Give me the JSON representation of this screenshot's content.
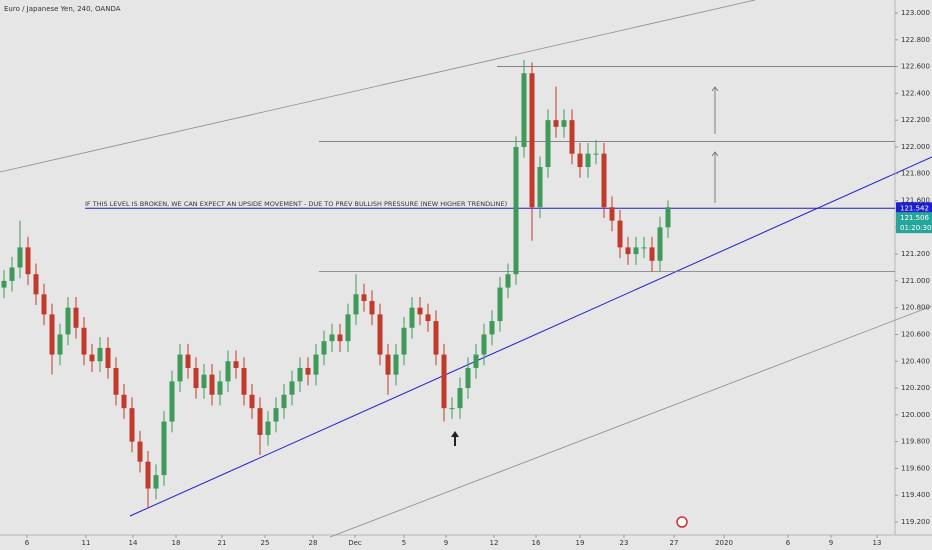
{
  "chart_data": {
    "type": "candlestick",
    "title": "Euro / Japanese Yen, 240, OANDA",
    "open": [
      120.95,
      121.0,
      121.1,
      121.25,
      121.05,
      120.9,
      120.75,
      120.45,
      120.6,
      120.8,
      120.65,
      120.45,
      120.4,
      120.5,
      120.35,
      120.15,
      120.05,
      119.8,
      119.65,
      119.45,
      119.55,
      119.95,
      120.25,
      120.45,
      120.35,
      120.2,
      120.3,
      120.15,
      120.25,
      120.4,
      120.35,
      120.15,
      120.05,
      119.85,
      119.95,
      120.05,
      120.15,
      120.25,
      120.35,
      120.3,
      120.45,
      120.55,
      120.6,
      120.55,
      120.75,
      120.9,
      120.85,
      120.75,
      120.45,
      120.3,
      120.45,
      120.65,
      120.8,
      120.75,
      120.7,
      120.45,
      120.05,
      120.05,
      120.2,
      120.35,
      120.45,
      120.6,
      120.7,
      120.95,
      121.05,
      122.0,
      122.55,
      121.55,
      121.85,
      122.2,
      122.15,
      122.2,
      121.95,
      121.85,
      121.95,
      121.95,
      121.55,
      121.45,
      121.25,
      121.2,
      121.25,
      121.25,
      121.15,
      121.4
    ],
    "high": [
      121.08,
      121.18,
      121.45,
      121.33,
      121.13,
      120.98,
      120.83,
      120.68,
      120.88,
      120.88,
      120.73,
      120.53,
      120.58,
      120.58,
      120.43,
      120.23,
      120.13,
      119.88,
      119.73,
      119.63,
      120.03,
      120.33,
      120.53,
      120.53,
      120.43,
      120.38,
      120.38,
      120.33,
      120.48,
      120.48,
      120.43,
      120.23,
      120.13,
      120.03,
      120.13,
      120.23,
      120.33,
      120.43,
      120.43,
      120.53,
      120.63,
      120.68,
      120.68,
      120.83,
      121.05,
      120.98,
      120.93,
      120.83,
      120.53,
      120.53,
      120.73,
      120.88,
      120.88,
      120.83,
      120.78,
      120.53,
      120.13,
      120.28,
      120.43,
      120.53,
      120.68,
      120.78,
      121.03,
      121.13,
      122.08,
      122.65,
      122.63,
      121.93,
      122.28,
      122.45,
      122.28,
      122.28,
      122.03,
      122.03,
      122.05,
      122.03,
      121.63,
      121.53,
      121.33,
      121.33,
      121.33,
      121.33,
      121.48,
      121.6
    ],
    "low": [
      120.87,
      120.92,
      121.02,
      120.97,
      120.82,
      120.67,
      120.3,
      120.37,
      120.52,
      120.57,
      120.37,
      120.32,
      120.32,
      120.27,
      120.07,
      119.97,
      119.72,
      119.57,
      119.3,
      119.37,
      119.47,
      119.87,
      120.17,
      120.27,
      120.12,
      120.12,
      120.07,
      120.07,
      120.17,
      120.27,
      120.07,
      119.97,
      119.7,
      119.77,
      119.87,
      119.97,
      120.07,
      120.17,
      120.22,
      120.22,
      120.37,
      120.47,
      120.47,
      120.47,
      120.67,
      120.77,
      120.67,
      120.37,
      120.15,
      120.22,
      120.37,
      120.57,
      120.67,
      120.62,
      120.37,
      119.95,
      119.97,
      119.97,
      120.12,
      120.27,
      120.37,
      120.52,
      120.62,
      120.87,
      120.97,
      121.92,
      121.3,
      121.47,
      121.77,
      122.07,
      122.07,
      121.87,
      121.77,
      121.77,
      121.87,
      121.47,
      121.37,
      121.17,
      121.12,
      121.12,
      121.17,
      121.07,
      121.07,
      121.32
    ],
    "close": [
      121.0,
      121.1,
      121.25,
      121.05,
      120.9,
      120.75,
      120.45,
      120.6,
      120.8,
      120.65,
      120.45,
      120.4,
      120.5,
      120.35,
      120.15,
      120.05,
      119.8,
      119.65,
      119.45,
      119.55,
      119.95,
      120.25,
      120.45,
      120.35,
      120.2,
      120.3,
      120.15,
      120.25,
      120.4,
      120.35,
      120.15,
      120.05,
      119.85,
      119.95,
      120.05,
      120.15,
      120.25,
      120.35,
      120.3,
      120.45,
      120.55,
      120.6,
      120.55,
      120.75,
      120.9,
      120.85,
      120.75,
      120.45,
      120.3,
      120.45,
      120.65,
      120.8,
      120.75,
      120.7,
      120.45,
      120.05,
      120.05,
      120.2,
      120.35,
      120.45,
      120.6,
      120.7,
      120.95,
      121.05,
      122.0,
      122.55,
      121.55,
      121.85,
      122.2,
      122.15,
      122.2,
      121.95,
      121.85,
      121.95,
      121.95,
      121.55,
      121.45,
      121.25,
      121.2,
      121.25,
      121.25,
      121.15,
      121.4,
      121.55
    ],
    "up_color": "#3f9a5a",
    "down_color": "#c0392b",
    "xlim": [
      -0.5,
      111.375
    ],
    "xticks": [
      {
        "value": 2.875,
        "label": "6"
      },
      {
        "value": 10.25,
        "label": "11"
      },
      {
        "value": 16.125,
        "label": "14"
      },
      {
        "value": 21.5,
        "label": "18"
      },
      {
        "value": 27.25,
        "label": "21"
      },
      {
        "value": 32.625,
        "label": "25"
      },
      {
        "value": 38.625,
        "label": "28"
      },
      {
        "value": 43.875,
        "label": "Dec"
      },
      {
        "value": 50,
        "label": "5"
      },
      {
        "value": 55.25,
        "label": "9"
      },
      {
        "value": 61.25,
        "label": "12"
      },
      {
        "value": 66.5,
        "label": "16"
      },
      {
        "value": 72,
        "label": "19"
      },
      {
        "value": 77.5,
        "label": "23"
      },
      {
        "value": 83.75,
        "label": "27"
      },
      {
        "value": 90,
        "label": "2020"
      },
      {
        "value": 98,
        "label": "6"
      },
      {
        "value": 103.375,
        "label": "9"
      },
      {
        "value": 109.125,
        "label": "13"
      }
    ],
    "ylim": [
      119.103,
      123.097
    ],
    "yticks": [
      {
        "value": 119.2,
        "label": "119.200"
      },
      {
        "value": 119.4,
        "label": "119.400"
      },
      {
        "value": 119.6,
        "label": "119.600"
      },
      {
        "value": 119.8,
        "label": "119.800"
      },
      {
        "value": 120,
        "label": "120.000"
      },
      {
        "value": 120.2,
        "label": "120.200"
      },
      {
        "value": 120.4,
        "label": "120.400"
      },
      {
        "value": 120.6,
        "label": "120.600"
      },
      {
        "value": 120.8,
        "label": "120.800"
      },
      {
        "value": 121,
        "label": "121.000"
      },
      {
        "value": 121.2,
        "label": "121.200"
      },
      {
        "value": 121.4,
        "label": "121.400"
      },
      {
        "value": 121.6,
        "label": "121.600"
      },
      {
        "value": 121.8,
        "label": "121.800"
      },
      {
        "value": 122,
        "label": "122.000"
      },
      {
        "value": 122.2,
        "label": "122.200"
      },
      {
        "value": 122.4,
        "label": "122.400"
      },
      {
        "value": 122.6,
        "label": "122.600"
      },
      {
        "value": 122.8,
        "label": "122.800"
      },
      {
        "value": 123,
        "label": "123.000"
      }
    ],
    "levels": [
      122.6,
      122.04,
      121.07
    ],
    "level_price": 121.542,
    "annotation": "IF THIS LEVEL IS BROKEN, WE CAN EXPECT AN UPSIDE MOVEMENT - DUE TO PREV BULLISH PRESSURE (NEW HIGHER TRENDLINE)",
    "last_price": 121.506,
    "countdown": "01:20:30"
  }
}
